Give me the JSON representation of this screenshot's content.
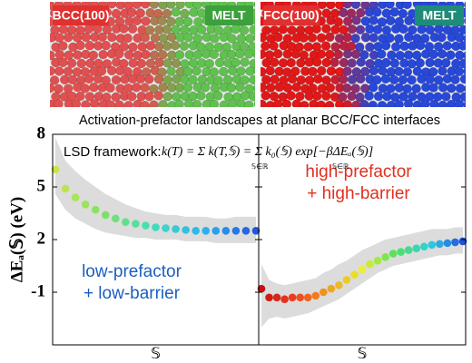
{
  "images": [
    {
      "labels": [
        "BCC(100)",
        "MELT"
      ]
    },
    {
      "labels": [
        "FCC(100)",
        "MELT"
      ]
    }
  ],
  "caption": "Activation-prefactor landscapes at planar BCC/FCC interfaces",
  "chart_data": {
    "type": "scatter",
    "ylabel": "ΔEₐ(𝕊) (eV)",
    "formula": {
      "lead": "LSD framework:",
      "expr": "k(T) = Σ k(T,𝕊) = Σ k₀(𝕊) exp[−βΔEₐ(𝕊)]",
      "subscripts": [
        "𝕊∈ℝ",
        "𝕊∈ℝ"
      ]
    },
    "ylim": [
      -4,
      8
    ],
    "yticks": [
      -1,
      2,
      5,
      8
    ],
    "panels": [
      {
        "xlabel": "𝕊",
        "annotation": {
          "lines": [
            "low-prefactor",
            "+ low-barrier"
          ],
          "color": "#1a5fc0"
        },
        "colormap": [
          "#c8e64a",
          "#7ee06a",
          "#3fdcc0",
          "#2ab0f0",
          "#2255e0"
        ],
        "values": [
          6.0,
          4.9,
          4.4,
          4.0,
          3.7,
          3.4,
          3.2,
          3.0,
          2.9,
          2.8,
          2.7,
          2.65,
          2.6,
          2.55,
          2.5,
          2.5,
          2.5,
          2.5,
          2.5,
          2.5,
          2.5
        ],
        "band_upper": [
          7.8,
          6.5,
          5.9,
          5.4,
          5.0,
          4.6,
          4.3,
          4.0,
          3.8,
          3.6,
          3.5,
          3.4,
          3.4,
          3.3,
          3.3,
          3.3,
          3.2,
          3.2,
          3.3,
          3.3,
          3.3
        ],
        "band_lower": [
          4.6,
          3.7,
          3.2,
          2.9,
          2.6,
          2.4,
          2.3,
          2.2,
          2.1,
          2.1,
          2.0,
          2.0,
          2.0,
          1.9,
          1.9,
          1.9,
          1.8,
          1.8,
          1.8,
          1.8,
          1.8
        ]
      },
      {
        "xlabel": "𝕊",
        "annotation": {
          "lines": [
            "high-prefactor",
            "+ high-barrier"
          ],
          "color": "#e03020"
        },
        "colormap": [
          "#c81010",
          "#f04020",
          "#f0a020",
          "#e8f030",
          "#50e060",
          "#30d0e0",
          "#2050e0"
        ],
        "values": [
          -0.8,
          -1.3,
          -1.3,
          -1.4,
          -1.3,
          -1.3,
          -1.3,
          -1.2,
          -1.0,
          -0.8,
          -0.6,
          -0.3,
          0,
          0.3,
          0.6,
          0.8,
          1.0,
          1.2,
          1.3,
          1.4,
          1.5,
          1.6,
          1.7,
          1.75,
          1.8,
          1.85,
          1.9
        ],
        "band_upper": [
          0.6,
          -0.3,
          -0.5,
          -0.6,
          -0.5,
          -0.4,
          -0.3,
          -0.2,
          0.1,
          0.3,
          0.6,
          0.8,
          1.1,
          1.4,
          1.6,
          1.8,
          2.0,
          2.1,
          2.2,
          2.3,
          2.4,
          2.5,
          2.6,
          2.6,
          2.6,
          2.7,
          2.7
        ],
        "band_lower": [
          -3.0,
          -2.5,
          -2.4,
          -2.5,
          -2.4,
          -2.3,
          -2.2,
          -2.0,
          -1.8,
          -1.6,
          -1.4,
          -1.1,
          -0.8,
          -0.5,
          -0.2,
          0.1,
          0.3,
          0.5,
          0.6,
          0.7,
          0.8,
          0.9,
          1.0,
          1.1,
          1.1,
          1.2,
          1.2
        ]
      }
    ]
  }
}
